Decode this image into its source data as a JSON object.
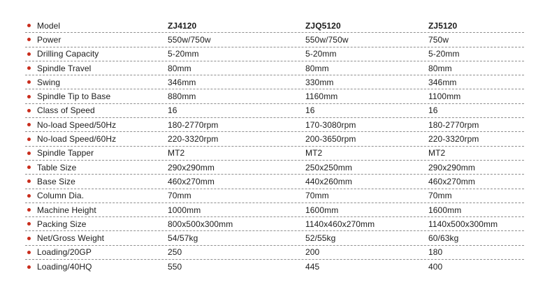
{
  "accent": {
    "bullet_color": "#c92d1c",
    "divider_color": "#8f8f8f",
    "text_color": "#1c1c1c"
  },
  "table": {
    "rows": [
      {
        "header": true,
        "label": "Model",
        "values": [
          "ZJ4120",
          "ZJQ5120",
          "ZJ5120"
        ]
      },
      {
        "header": false,
        "label": "Power",
        "values": [
          "550w/750w",
          "550w/750w",
          "750w"
        ]
      },
      {
        "header": false,
        "label": "Drilling Capacity",
        "values": [
          "5-20mm",
          "5-20mm",
          "5-20mm"
        ]
      },
      {
        "header": false,
        "label": "Spindle Travel",
        "values": [
          "80mm",
          "80mm",
          "80mm"
        ]
      },
      {
        "header": false,
        "label": "Swing",
        "values": [
          "346mm",
          "330mm",
          "346mm"
        ]
      },
      {
        "header": false,
        "label": "Spindle Tip to Base",
        "values": [
          "880mm",
          "1160mm",
          "1100mm"
        ]
      },
      {
        "header": false,
        "label": "Class of Speed",
        "values": [
          "16",
          "16",
          "16"
        ]
      },
      {
        "header": false,
        "label": "No-load Speed/50Hz",
        "values": [
          "180-2770rpm",
          "170-3080rpm",
          "180-2770rpm"
        ]
      },
      {
        "header": false,
        "label": "No-load Speed/60Hz",
        "values": [
          "220-3320rpm",
          "200-3650rpm",
          "220-3320rpm"
        ]
      },
      {
        "header": false,
        "label": "Spindle Tapper",
        "values": [
          "MT2",
          "MT2",
          "MT2"
        ]
      },
      {
        "header": false,
        "label": "Table Size",
        "values": [
          "290x290mm",
          "250x250mm",
          "290x290mm"
        ]
      },
      {
        "header": false,
        "label": "Base Size",
        "values": [
          "460x270mm",
          "440x260mm",
          "460x270mm"
        ]
      },
      {
        "header": false,
        "label": "Column Dia.",
        "values": [
          "70mm",
          "70mm",
          "70mm"
        ]
      },
      {
        "header": false,
        "label": "Machine Height",
        "values": [
          "1000mm",
          "1600mm",
          "1600mm"
        ]
      },
      {
        "header": false,
        "label": "Packing Size",
        "values": [
          "800x500x300mm",
          "1140x460x270mm",
          "1140x500x300mm"
        ]
      },
      {
        "header": false,
        "label": "Net/Gross Weight",
        "values": [
          "54/57kg",
          "52/55kg",
          "60/63kg"
        ]
      },
      {
        "header": false,
        "label": "Loading/20GP",
        "values": [
          "250",
          "200",
          "180"
        ]
      },
      {
        "header": false,
        "label": "Loading/40HQ",
        "values": [
          "550",
          "445",
          "400"
        ]
      }
    ]
  }
}
